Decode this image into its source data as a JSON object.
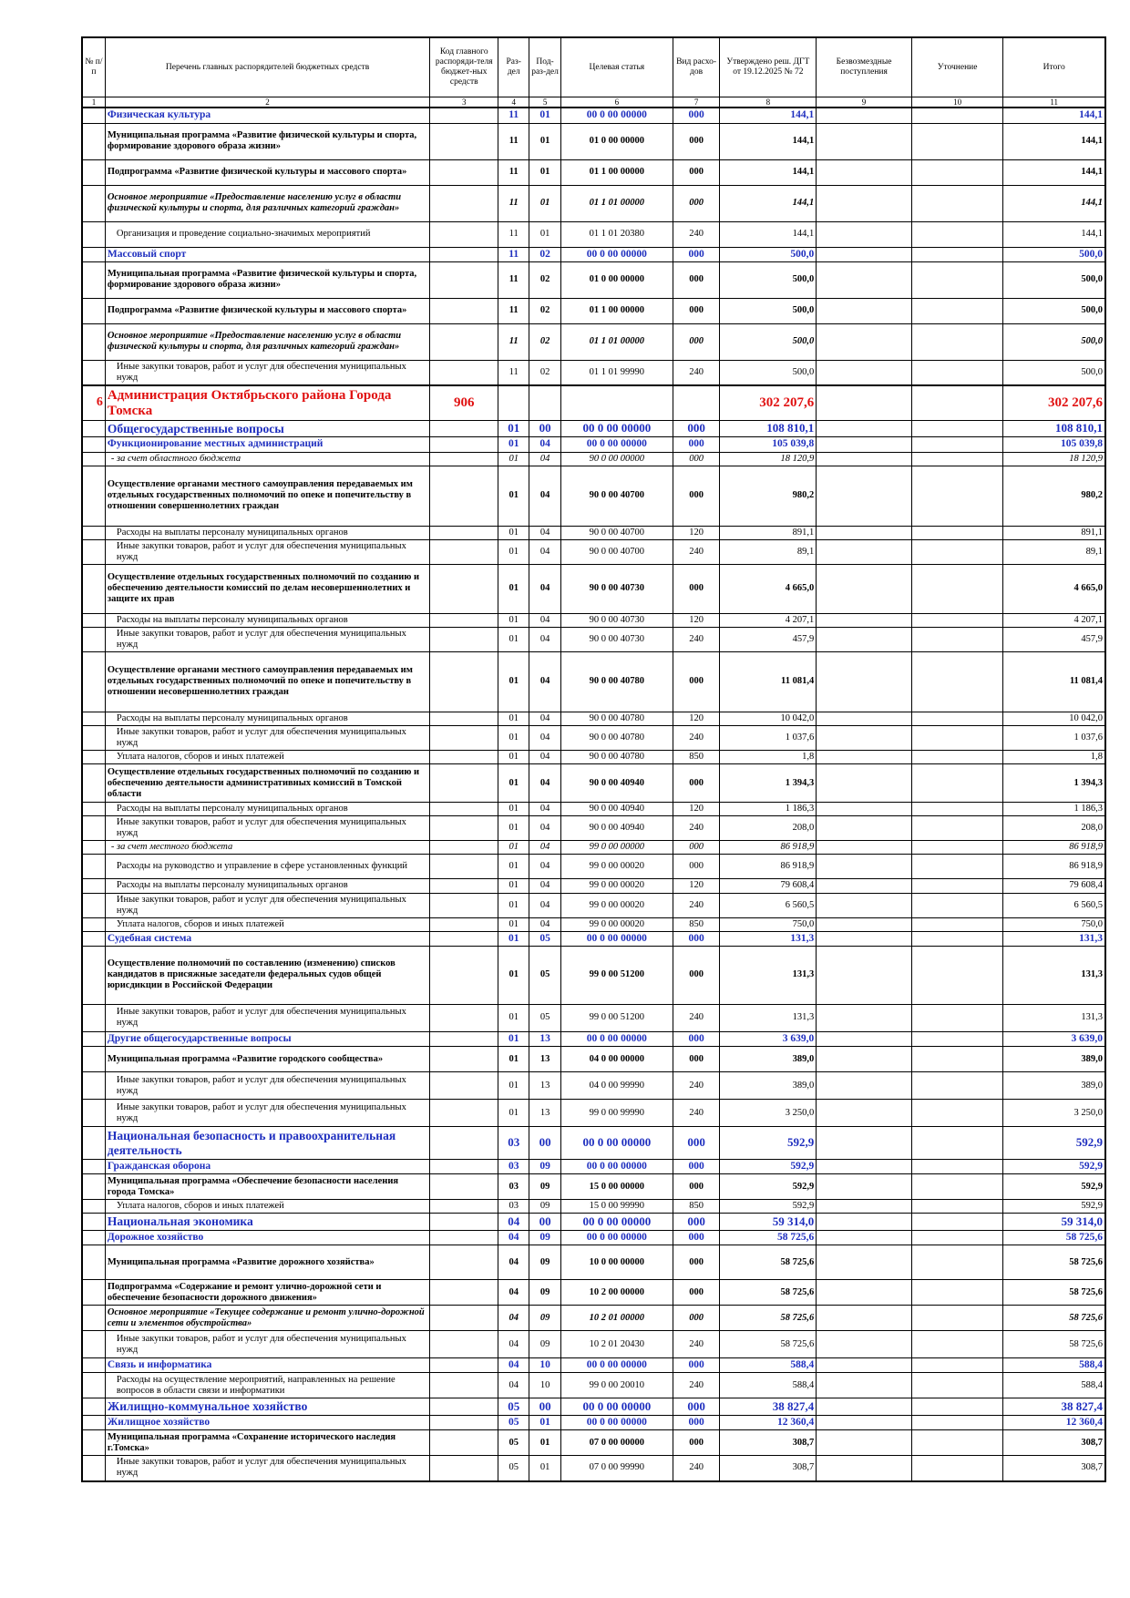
{
  "header": {
    "col1": "№ п/п",
    "col2": "Перечень главных распорядителей бюджетных средств",
    "col3": "Код главного распоряди-теля бюджет-ных средств",
    "col4": "Раз-дел",
    "col5": "Под-раз-дел",
    "col6": "Целевая статья",
    "col7": "Вид расхо-дов",
    "col8": "Утверждено реш. ДГТ от 19.12.2025 № 72",
    "col9": "Безвозмездные поступления",
    "col10": "Уточнение",
    "col11": "Итого"
  },
  "column_numbers": [
    "1",
    "2",
    "3",
    "4",
    "5",
    "6",
    "7",
    "8",
    "9",
    "10",
    "11"
  ],
  "rows": [
    {
      "type": "sec",
      "h": 15,
      "num": "",
      "name": "Физическая культура",
      "code": "",
      "rz": "11",
      "pr": "01",
      "cs": "00 0 00 00000",
      "vr": "000",
      "approved": "144,1",
      "grants": "",
      "clarify": "",
      "total": "144,1"
    },
    {
      "type": "prog",
      "h": 40,
      "num": "",
      "name": "Муниципальная программа «Развитие физической культуры и спорта, формирование здорового образа жизни»",
      "code": "",
      "rz": "11",
      "pr": "01",
      "cs": "01 0 00 00000",
      "vr": "000",
      "approved": "144,1",
      "grants": "",
      "clarify": "",
      "total": "144,1"
    },
    {
      "type": "prog",
      "h": 28,
      "num": "",
      "name": "Подпрограмма «Развитие физической культуры и массового спорта»",
      "code": "",
      "rz": "11",
      "pr": "01",
      "cs": "01 1 00 00000",
      "vr": "000",
      "approved": "144,1",
      "grants": "",
      "clarify": "",
      "total": "144,1"
    },
    {
      "type": "event",
      "h": 40,
      "num": "",
      "name": "Основное мероприятие «Предоставление населению услуг в области физической культуры и спорта, для различных категорий граждан»",
      "code": "",
      "rz": "11",
      "pr": "01",
      "cs": "01 1 01 00000",
      "vr": "000",
      "approved": "144,1",
      "grants": "",
      "clarify": "",
      "total": "144,1"
    },
    {
      "type": "plain",
      "h": 28,
      "num": "",
      "name": "Организация и проведение социально-значимых мероприятий",
      "code": "",
      "rz": "11",
      "pr": "01",
      "cs": "01 1 01 20380",
      "vr": "240",
      "approved": "144,1",
      "grants": "",
      "clarify": "",
      "total": "144,1"
    },
    {
      "type": "sec",
      "h": 15,
      "num": "",
      "name": "Массовый спорт",
      "code": "",
      "rz": "11",
      "pr": "02",
      "cs": "00 0 00 00000",
      "vr": "000",
      "approved": "500,0",
      "grants": "",
      "clarify": "",
      "total": "500,0"
    },
    {
      "type": "prog",
      "h": 40,
      "num": "",
      "name": "Муниципальная программа «Развитие физической культуры и спорта, формирование здорового образа жизни»",
      "code": "",
      "rz": "11",
      "pr": "02",
      "cs": "01 0 00 00000",
      "vr": "000",
      "approved": "500,0",
      "grants": "",
      "clarify": "",
      "total": "500,0"
    },
    {
      "type": "prog",
      "h": 28,
      "num": "",
      "name": "Подпрограмма «Развитие физической культуры и массового спорта»",
      "code": "",
      "rz": "11",
      "pr": "02",
      "cs": "01 1 00 00000",
      "vr": "000",
      "approved": "500,0",
      "grants": "",
      "clarify": "",
      "total": "500,0"
    },
    {
      "type": "event",
      "h": 40,
      "num": "",
      "name": "Основное мероприятие «Предоставление населению услуг в области физической культуры и спорта, для различных категорий граждан»",
      "code": "",
      "rz": "11",
      "pr": "02",
      "cs": "01 1 01 00000",
      "vr": "000",
      "approved": "500,0",
      "grants": "",
      "clarify": "",
      "total": "500,0"
    },
    {
      "type": "plain",
      "h": 28,
      "num": "",
      "name": "Иные закупки товаров, работ и услуг для обеспечения муниципальных нужд",
      "code": "",
      "rz": "11",
      "pr": "02",
      "cs": "01 1 01 99990",
      "vr": "240",
      "approved": "500,0",
      "grants": "",
      "clarify": "",
      "total": "500,0"
    },
    {
      "type": "org",
      "h": 38,
      "num": "6",
      "name": "Администрация Октябрьского района Города Томска",
      "code": "906",
      "rz": "",
      "pr": "",
      "cs": "",
      "vr": "",
      "approved": "302 207,6",
      "grants": "",
      "clarify": "",
      "total": "302 207,6"
    },
    {
      "type": "sec big",
      "h": 17,
      "num": "",
      "name": "Общегосударственные вопросы",
      "code": "",
      "rz": "01",
      "pr": "00",
      "cs": "00 0 00 00000",
      "vr": "000",
      "approved": "108 810,1",
      "grants": "",
      "clarify": "",
      "total": "108 810,1"
    },
    {
      "type": "sec",
      "h": 15,
      "num": "",
      "name": "Функционирование местных администраций",
      "code": "",
      "rz": "01",
      "pr": "04",
      "cs": "00 0 00 00000",
      "vr": "000",
      "approved": "105 039,8",
      "grants": "",
      "clarify": "",
      "total": "105 039,8"
    },
    {
      "type": "src",
      "h": 13,
      "num": "",
      "name": "- за счет областного бюджета",
      "code": "",
      "rz": "01",
      "pr": "04",
      "cs": "90 0 00 00000",
      "vr": "000",
      "approved": "18 120,9",
      "grants": "",
      "clarify": "",
      "total": "18 120,9"
    },
    {
      "type": "prog",
      "h": 66,
      "num": "",
      "name": "Осуществление органами местного самоуправления передаваемых им отдельных государственных полномочий по опеке и попечительству в отношении совершеннолетних граждан",
      "code": "",
      "rz": "01",
      "pr": "04",
      "cs": "90 0 00 40700",
      "vr": "000",
      "approved": "980,2",
      "grants": "",
      "clarify": "",
      "total": "980,2"
    },
    {
      "type": "plain",
      "h": 13,
      "num": "",
      "name": "Расходы на выплаты персоналу муниципальных органов",
      "code": "",
      "rz": "01",
      "pr": "04",
      "cs": "90 0 00 40700",
      "vr": "120",
      "approved": "891,1",
      "grants": "",
      "clarify": "",
      "total": "891,1"
    },
    {
      "type": "plain",
      "h": 27,
      "num": "",
      "name": "Иные закупки товаров, работ и услуг для обеспечения муниципальных нужд",
      "code": "",
      "rz": "01",
      "pr": "04",
      "cs": "90 0 00 40700",
      "vr": "240",
      "approved": "89,1",
      "grants": "",
      "clarify": "",
      "total": "89,1"
    },
    {
      "type": "prog",
      "h": 54,
      "num": "",
      "name": "Осуществление отдельных государственных полномочий по созданию и обеспечению деятельности комиссий по делам несовершеннолетних и защите их прав",
      "code": "",
      "rz": "01",
      "pr": "04",
      "cs": "90 0 00 40730",
      "vr": "000",
      "approved": "4 665,0",
      "grants": "",
      "clarify": "",
      "total": "4 665,0"
    },
    {
      "type": "plain",
      "h": 13,
      "num": "",
      "name": "Расходы на выплаты персоналу муниципальных органов",
      "code": "",
      "rz": "01",
      "pr": "04",
      "cs": "90 0 00 40730",
      "vr": "120",
      "approved": "4 207,1",
      "grants": "",
      "clarify": "",
      "total": "4 207,1"
    },
    {
      "type": "plain",
      "h": 27,
      "num": "",
      "name": "Иные закупки товаров, работ и услуг для обеспечения муниципальных нужд",
      "code": "",
      "rz": "01",
      "pr": "04",
      "cs": "90 0 00 40730",
      "vr": "240",
      "approved": "457,9",
      "grants": "",
      "clarify": "",
      "total": "457,9"
    },
    {
      "type": "prog",
      "h": 66,
      "num": "",
      "name": "Осуществление органами местного самоуправления передаваемых им отдельных государственных полномочий по опеке и попечительству в отношении несовершеннолетних граждан",
      "code": "",
      "rz": "01",
      "pr": "04",
      "cs": "90 0 00 40780",
      "vr": "000",
      "approved": "11 081,4",
      "grants": "",
      "clarify": "",
      "total": "11 081,4"
    },
    {
      "type": "plain",
      "h": 13,
      "num": "",
      "name": "Расходы на выплаты персоналу муниципальных органов",
      "code": "",
      "rz": "01",
      "pr": "04",
      "cs": "90 0 00 40780",
      "vr": "120",
      "approved": "10 042,0",
      "grants": "",
      "clarify": "",
      "total": "10 042,0"
    },
    {
      "type": "plain",
      "h": 27,
      "num": "",
      "name": "Иные закупки товаров, работ и услуг для обеспечения муниципальных нужд",
      "code": "",
      "rz": "01",
      "pr": "04",
      "cs": "90 0 00 40780",
      "vr": "240",
      "approved": "1 037,6",
      "grants": "",
      "clarify": "",
      "total": "1 037,6"
    },
    {
      "type": "plain",
      "h": 13,
      "num": "",
      "name": "Уплата налогов, сборов и иных платежей",
      "code": "",
      "rz": "01",
      "pr": "04",
      "cs": "90 0 00 40780",
      "vr": "850",
      "approved": "1,8",
      "grants": "",
      "clarify": "",
      "total": "1,8"
    },
    {
      "type": "prog",
      "h": 42,
      "num": "",
      "name": "Осуществление отдельных государственных полномочий по созданию и обеспечению деятельности административных комиссий в Томской области",
      "code": "",
      "rz": "01",
      "pr": "04",
      "cs": "90 0 00 40940",
      "vr": "000",
      "approved": "1 394,3",
      "grants": "",
      "clarify": "",
      "total": "1 394,3"
    },
    {
      "type": "plain",
      "h": 13,
      "num": "",
      "name": "Расходы на выплаты персоналу муниципальных органов",
      "code": "",
      "rz": "01",
      "pr": "04",
      "cs": "90 0 00 40940",
      "vr": "120",
      "approved": "1 186,3",
      "grants": "",
      "clarify": "",
      "total": "1 186,3"
    },
    {
      "type": "plain",
      "h": 27,
      "num": "",
      "name": "Иные закупки товаров, работ и услуг для обеспечения муниципальных нужд",
      "code": "",
      "rz": "01",
      "pr": "04",
      "cs": "90 0 00 40940",
      "vr": "240",
      "approved": "208,0",
      "grants": "",
      "clarify": "",
      "total": "208,0"
    },
    {
      "type": "src",
      "h": 13,
      "num": "",
      "name": "- за счет местного бюджета",
      "code": "",
      "rz": "01",
      "pr": "04",
      "cs": "99 0 00 00000",
      "vr": "000",
      "approved": "86 918,9",
      "grants": "",
      "clarify": "",
      "total": "86 918,9"
    },
    {
      "type": "plain",
      "h": 27,
      "num": "",
      "name": "Расходы на руководство и управление в сфере установленных функций",
      "code": "",
      "rz": "01",
      "pr": "04",
      "cs": "99 0 00 00020",
      "vr": "000",
      "approved": "86 918,9",
      "grants": "",
      "clarify": "",
      "total": "86 918,9"
    },
    {
      "type": "plain",
      "h": 13,
      "num": "",
      "name": "Расходы на выплаты персоналу муниципальных органов",
      "code": "",
      "rz": "01",
      "pr": "04",
      "cs": "99 0 00 00020",
      "vr": "120",
      "approved": "79 608,4",
      "grants": "",
      "clarify": "",
      "total": "79 608,4"
    },
    {
      "type": "plain",
      "h": 27,
      "num": "",
      "name": "Иные закупки товаров, работ и услуг для обеспечения муниципальных нужд",
      "code": "",
      "rz": "01",
      "pr": "04",
      "cs": "99 0 00 00020",
      "vr": "240",
      "approved": "6 560,5",
      "grants": "",
      "clarify": "",
      "total": "6 560,5"
    },
    {
      "type": "plain",
      "h": 13,
      "num": "",
      "name": "Уплата налогов, сборов и иных платежей",
      "code": "",
      "rz": "01",
      "pr": "04",
      "cs": "99 0 00 00020",
      "vr": "850",
      "approved": "750,0",
      "grants": "",
      "clarify": "",
      "total": "750,0"
    },
    {
      "type": "sec",
      "h": 15,
      "num": "",
      "name": "Судебная система",
      "code": "",
      "rz": "01",
      "pr": "05",
      "cs": "00 0 00 00000",
      "vr": "000",
      "approved": "131,3",
      "grants": "",
      "clarify": "",
      "total": "131,3"
    },
    {
      "type": "prog",
      "h": 64,
      "num": "",
      "name": "Осуществление полномочий по составлению (изменению) списков кандидатов в присяжные заседатели федеральных судов общей юрисдикции в Российской Федерации",
      "code": "",
      "rz": "01",
      "pr": "05",
      "cs": "99 0 00 51200",
      "vr": "000",
      "approved": "131,3",
      "grants": "",
      "clarify": "",
      "total": "131,3"
    },
    {
      "type": "plain",
      "h": 30,
      "num": "",
      "name": "Иные закупки товаров, работ и услуг для обеспечения муниципальных нужд",
      "code": "",
      "rz": "01",
      "pr": "05",
      "cs": "99 0 00 51200",
      "vr": "240",
      "approved": "131,3",
      "grants": "",
      "clarify": "",
      "total": "131,3"
    },
    {
      "type": "sec",
      "h": 15,
      "num": "",
      "name": "Другие общегосударственные вопросы",
      "code": "",
      "rz": "01",
      "pr": "13",
      "cs": "00 0 00 00000",
      "vr": "000",
      "approved": "3 639,0",
      "grants": "",
      "clarify": "",
      "total": "3 639,0"
    },
    {
      "type": "prog",
      "h": 28,
      "num": "",
      "name": "Муниципальная программа «Развитие городского сообщества»",
      "code": "",
      "rz": "01",
      "pr": "13",
      "cs": "04 0 00 00000",
      "vr": "000",
      "approved": "389,0",
      "grants": "",
      "clarify": "",
      "total": "389,0"
    },
    {
      "type": "plain",
      "h": 30,
      "num": "",
      "name": "Иные закупки товаров, работ и услуг для обеспечения муниципальных нужд",
      "code": "",
      "rz": "01",
      "pr": "13",
      "cs": "04 0 00 99990",
      "vr": "240",
      "approved": "389,0",
      "grants": "",
      "clarify": "",
      "total": "389,0"
    },
    {
      "type": "plain",
      "h": 30,
      "num": "",
      "name": "Иные закупки товаров, работ и услуг для обеспечения муниципальных нужд",
      "code": "",
      "rz": "01",
      "pr": "13",
      "cs": "99 0 00 99990",
      "vr": "240",
      "approved": "3 250,0",
      "grants": "",
      "clarify": "",
      "total": "3 250,0"
    },
    {
      "type": "sec big",
      "h": 36,
      "num": "",
      "name": "Национальная безопасность и правоохранительная деятельность",
      "code": "",
      "rz": "03",
      "pr": "00",
      "cs": "00 0 00 00000",
      "vr": "000",
      "approved": "592,9",
      "grants": "",
      "clarify": "",
      "total": "592,9"
    },
    {
      "type": "sec",
      "h": 15,
      "num": "",
      "name": "Гражданская оборона",
      "code": "",
      "rz": "03",
      "pr": "09",
      "cs": "00 0 00 00000",
      "vr": "000",
      "approved": "592,9",
      "grants": "",
      "clarify": "",
      "total": "592,9"
    },
    {
      "type": "prog",
      "h": 28,
      "num": "",
      "name": "Муниципальная программа «Обеспечение безопасности населения города Томска»",
      "code": "",
      "rz": "03",
      "pr": "09",
      "cs": "15 0 00 00000",
      "vr": "000",
      "approved": "592,9",
      "grants": "",
      "clarify": "",
      "total": "592,9"
    },
    {
      "type": "plain",
      "h": 13,
      "num": "",
      "name": "Уплата налогов, сборов и иных платежей",
      "code": "",
      "rz": "03",
      "pr": "09",
      "cs": "15 0 00 99990",
      "vr": "850",
      "approved": "592,9",
      "grants": "",
      "clarify": "",
      "total": "592,9"
    },
    {
      "type": "sec big",
      "h": 17,
      "num": "",
      "name": "Национальная экономика",
      "code": "",
      "rz": "04",
      "pr": "00",
      "cs": "00 0 00 00000",
      "vr": "000",
      "approved": "59 314,0",
      "grants": "",
      "clarify": "",
      "total": "59 314,0"
    },
    {
      "type": "sec",
      "h": 15,
      "num": "",
      "name": "Дорожное хозяйство",
      "code": "",
      "rz": "04",
      "pr": "09",
      "cs": "00 0 00 00000",
      "vr": "000",
      "approved": "58 725,6",
      "grants": "",
      "clarify": "",
      "total": "58 725,6"
    },
    {
      "type": "prog",
      "h": 38,
      "num": "",
      "name": "Муниципальная программа «Развитие дорожного хозяйства»",
      "code": "",
      "rz": "04",
      "pr": "09",
      "cs": "10 0 00 00000",
      "vr": "000",
      "approved": "58 725,6",
      "grants": "",
      "clarify": "",
      "total": "58 725,6"
    },
    {
      "type": "prog",
      "h": 28,
      "num": "",
      "name": "Подпрограмма «Содержание и ремонт улично-дорожной сети и обеспечение безопасности дорожного движения»",
      "code": "",
      "rz": "04",
      "pr": "09",
      "cs": "10 2 00 00000",
      "vr": "000",
      "approved": "58 725,6",
      "grants": "",
      "clarify": "",
      "total": "58 725,6"
    },
    {
      "type": "event",
      "h": 28,
      "num": "",
      "name": "Основное мероприятие «Текущее содержание и ремонт улично-дорожной сети и элементов обустройства»",
      "code": "",
      "rz": "04",
      "pr": "09",
      "cs": "10 2 01 00000",
      "vr": "000",
      "approved": "58 725,6",
      "grants": "",
      "clarify": "",
      "total": "58 725,6"
    },
    {
      "type": "plain",
      "h": 30,
      "num": "",
      "name": "Иные закупки товаров, работ и услуг для обеспечения муниципальных нужд",
      "code": "",
      "rz": "04",
      "pr": "09",
      "cs": "10 2 01 20430",
      "vr": "240",
      "approved": "58 725,6",
      "grants": "",
      "clarify": "",
      "total": "58 725,6"
    },
    {
      "type": "sec",
      "h": 15,
      "num": "",
      "name": "Связь и информатика",
      "code": "",
      "rz": "04",
      "pr": "10",
      "cs": "00 0 00 00000",
      "vr": "000",
      "approved": "588,4",
      "grants": "",
      "clarify": "",
      "total": "588,4"
    },
    {
      "type": "plain",
      "h": 28,
      "num": "",
      "name": "Расходы на осуществление мероприятий, направленных на решение вопросов в области связи и информатики",
      "code": "",
      "rz": "04",
      "pr": "10",
      "cs": "99 0 00 20010",
      "vr": "240",
      "approved": "588,4",
      "grants": "",
      "clarify": "",
      "total": "588,4"
    },
    {
      "type": "sec big",
      "h": 17,
      "num": "",
      "name": "Жилищно-коммунальное хозяйство",
      "code": "",
      "rz": "05",
      "pr": "00",
      "cs": "00 0 00 00000",
      "vr": "000",
      "approved": "38 827,4",
      "grants": "",
      "clarify": "",
      "total": "38 827,4"
    },
    {
      "type": "sec",
      "h": 15,
      "num": "",
      "name": "Жилищное хозяйство",
      "code": "",
      "rz": "05",
      "pr": "01",
      "cs": "00 0 00 00000",
      "vr": "000",
      "approved": "12 360,4",
      "grants": "",
      "clarify": "",
      "total": "12 360,4"
    },
    {
      "type": "prog",
      "h": 28,
      "num": "",
      "name": "Муниципальная программа «Сохранение исторического наследия г.Томска»",
      "code": "",
      "rz": "05",
      "pr": "01",
      "cs": "07 0 00 00000",
      "vr": "000",
      "approved": "308,7",
      "grants": "",
      "clarify": "",
      "total": "308,7"
    },
    {
      "type": "plain",
      "h": 28,
      "num": "",
      "name": "Иные закупки товаров, работ и услуг для обеспечения муниципальных нужд",
      "code": "",
      "rz": "05",
      "pr": "01",
      "cs": "07 0 00 99990",
      "vr": "240",
      "approved": "308,7",
      "grants": "",
      "clarify": "",
      "total": "308,7"
    }
  ]
}
